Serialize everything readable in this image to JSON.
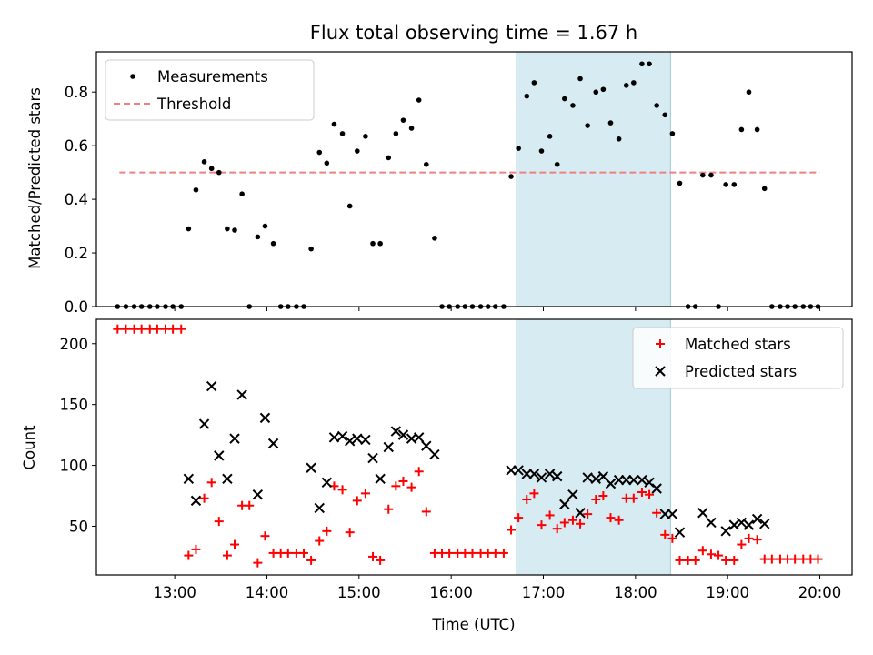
{
  "chart_data": [
    {
      "type": "scatter",
      "title": "Flux total observing time = 1.67 h",
      "xlabel": "",
      "ylabel": "Matched/Predicted stars",
      "xlim": [
        12.15,
        20.35
      ],
      "ylim": [
        0,
        0.95
      ],
      "yticks": [
        0.0,
        0.2,
        0.4,
        0.6,
        0.8
      ],
      "ytick_labels": [
        "0.0",
        "0.2",
        "0.4",
        "0.6",
        "0.8"
      ],
      "highlight_span": [
        16.71,
        18.38
      ],
      "legend_position": "top-left",
      "threshold": {
        "name": "Threshold",
        "value": 0.5,
        "x_range": [
          12.4,
          20.0
        ],
        "color": "#f08080"
      },
      "series": [
        {
          "name": "Measurements",
          "marker": "dot",
          "color": "#000000",
          "points": [
            [
              12.38,
              0
            ],
            [
              12.47,
              0
            ],
            [
              12.56,
              0
            ],
            [
              12.64,
              0
            ],
            [
              12.73,
              0
            ],
            [
              12.81,
              0
            ],
            [
              12.9,
              0
            ],
            [
              12.98,
              0
            ],
            [
              13.07,
              0
            ],
            [
              13.15,
              0.29
            ],
            [
              13.23,
              0.435
            ],
            [
              13.32,
              0.54
            ],
            [
              13.4,
              0.515
            ],
            [
              13.48,
              0.5
            ],
            [
              13.57,
              0.29
            ],
            [
              13.65,
              0.285
            ],
            [
              13.73,
              0.42
            ],
            [
              13.81,
              0
            ],
            [
              13.9,
              0.26
            ],
            [
              13.98,
              0.3
            ],
            [
              14.07,
              0.235
            ],
            [
              14.15,
              0
            ],
            [
              14.23,
              0
            ],
            [
              14.32,
              0
            ],
            [
              14.4,
              0
            ],
            [
              14.48,
              0.215
            ],
            [
              14.57,
              0.575
            ],
            [
              14.65,
              0.535
            ],
            [
              14.73,
              0.68
            ],
            [
              14.82,
              0.645
            ],
            [
              14.9,
              0.375
            ],
            [
              14.98,
              0.58
            ],
            [
              15.07,
              0.635
            ],
            [
              15.15,
              0.235
            ],
            [
              15.23,
              0.235
            ],
            [
              15.32,
              0.555
            ],
            [
              15.4,
              0.645
            ],
            [
              15.48,
              0.695
            ],
            [
              15.57,
              0.665
            ],
            [
              15.65,
              0.77
            ],
            [
              15.73,
              0.53
            ],
            [
              15.82,
              0.255
            ],
            [
              15.9,
              0
            ],
            [
              15.98,
              0
            ],
            [
              16.07,
              0
            ],
            [
              16.15,
              0
            ],
            [
              16.23,
              0
            ],
            [
              16.32,
              0
            ],
            [
              16.4,
              0
            ],
            [
              16.48,
              0
            ],
            [
              16.57,
              0
            ],
            [
              16.65,
              0.485
            ],
            [
              16.73,
              0.59
            ],
            [
              16.82,
              0.785
            ],
            [
              16.9,
              0.835
            ],
            [
              16.98,
              0.58
            ],
            [
              17.07,
              0.635
            ],
            [
              17.15,
              0.53
            ],
            [
              17.23,
              0.775
            ],
            [
              17.32,
              0.75
            ],
            [
              17.4,
              0.85
            ],
            [
              17.48,
              0.675
            ],
            [
              17.57,
              0.8
            ],
            [
              17.65,
              0.81
            ],
            [
              17.73,
              0.685
            ],
            [
              17.82,
              0.625
            ],
            [
              17.9,
              0.825
            ],
            [
              17.98,
              0.835
            ],
            [
              18.07,
              0.905
            ],
            [
              18.15,
              0.905
            ],
            [
              18.23,
              0.75
            ],
            [
              18.32,
              0.715
            ],
            [
              18.4,
              0.645
            ],
            [
              18.48,
              0.46
            ],
            [
              18.57,
              0
            ],
            [
              18.65,
              0
            ],
            [
              18.73,
              0.49
            ],
            [
              18.82,
              0.49
            ],
            [
              18.9,
              0
            ],
            [
              18.98,
              0.455
            ],
            [
              19.07,
              0.455
            ],
            [
              19.15,
              0.66
            ],
            [
              19.23,
              0.8
            ],
            [
              19.32,
              0.66
            ],
            [
              19.4,
              0.44
            ],
            [
              19.48,
              0
            ],
            [
              19.57,
              0
            ],
            [
              19.65,
              0
            ],
            [
              19.73,
              0
            ],
            [
              19.82,
              0
            ],
            [
              19.9,
              0
            ],
            [
              19.98,
              0
            ]
          ]
        }
      ]
    },
    {
      "type": "scatter",
      "title": "",
      "xlabel": "Time (UTC)",
      "ylabel": "Count",
      "xlim": [
        12.15,
        20.35
      ],
      "ylim": [
        10,
        220
      ],
      "yticks": [
        50,
        100,
        150,
        200
      ],
      "ytick_labels": [
        "50",
        "100",
        "150",
        "200"
      ],
      "xticks": [
        13,
        14,
        15,
        16,
        17,
        18,
        19,
        20
      ],
      "xtick_labels": [
        "13:00",
        "14:00",
        "15:00",
        "16:00",
        "17:00",
        "18:00",
        "19:00",
        "20:00"
      ],
      "highlight_span": [
        16.71,
        18.38
      ],
      "legend_position": "top-right",
      "series": [
        {
          "name": "Matched stars",
          "marker": "plus",
          "color": "#ff0000",
          "points": [
            [
              12.38,
              212
            ],
            [
              12.47,
              212
            ],
            [
              12.56,
              212
            ],
            [
              12.64,
              212
            ],
            [
              12.73,
              212
            ],
            [
              12.81,
              212
            ],
            [
              12.9,
              212
            ],
            [
              12.98,
              212
            ],
            [
              13.07,
              212
            ],
            [
              13.15,
              26
            ],
            [
              13.23,
              31
            ],
            [
              13.32,
              73
            ],
            [
              13.4,
              86
            ],
            [
              13.48,
              54
            ],
            [
              13.57,
              26
            ],
            [
              13.65,
              35
            ],
            [
              13.73,
              67
            ],
            [
              13.81,
              67
            ],
            [
              13.9,
              20
            ],
            [
              13.98,
              42
            ],
            [
              14.07,
              28
            ],
            [
              14.15,
              28
            ],
            [
              14.23,
              28
            ],
            [
              14.32,
              28
            ],
            [
              14.4,
              28
            ],
            [
              14.48,
              22
            ],
            [
              14.57,
              38
            ],
            [
              14.65,
              46
            ],
            [
              14.73,
              83
            ],
            [
              14.82,
              80
            ],
            [
              14.9,
              45
            ],
            [
              14.98,
              71
            ],
            [
              15.07,
              77
            ],
            [
              15.15,
              25
            ],
            [
              15.23,
              22
            ],
            [
              15.32,
              64
            ],
            [
              15.4,
              83
            ],
            [
              15.48,
              87
            ],
            [
              15.57,
              82
            ],
            [
              15.65,
              95
            ],
            [
              15.73,
              62
            ],
            [
              15.82,
              28
            ],
            [
              15.9,
              28
            ],
            [
              15.98,
              28
            ],
            [
              16.07,
              28
            ],
            [
              16.15,
              28
            ],
            [
              16.23,
              28
            ],
            [
              16.32,
              28
            ],
            [
              16.4,
              28
            ],
            [
              16.48,
              28
            ],
            [
              16.57,
              28
            ],
            [
              16.65,
              47
            ],
            [
              16.73,
              57
            ],
            [
              16.82,
              72
            ],
            [
              16.9,
              77
            ],
            [
              16.98,
              51
            ],
            [
              17.07,
              59
            ],
            [
              17.15,
              48
            ],
            [
              17.23,
              53
            ],
            [
              17.32,
              55
            ],
            [
              17.4,
              52
            ],
            [
              17.48,
              60
            ],
            [
              17.57,
              72
            ],
            [
              17.65,
              75
            ],
            [
              17.73,
              57
            ],
            [
              17.82,
              55
            ],
            [
              17.9,
              73
            ],
            [
              17.98,
              73
            ],
            [
              18.07,
              78
            ],
            [
              18.15,
              76
            ],
            [
              18.23,
              61
            ],
            [
              18.32,
              43
            ],
            [
              18.4,
              40
            ],
            [
              18.48,
              22
            ],
            [
              18.57,
              22
            ],
            [
              18.65,
              22
            ],
            [
              18.73,
              30
            ],
            [
              18.82,
              27
            ],
            [
              18.9,
              26
            ],
            [
              18.98,
              22
            ],
            [
              19.07,
              22
            ],
            [
              19.15,
              35
            ],
            [
              19.23,
              40
            ],
            [
              19.32,
              39
            ],
            [
              19.4,
              23
            ],
            [
              19.48,
              23
            ],
            [
              19.57,
              23
            ],
            [
              19.65,
              23
            ],
            [
              19.73,
              23
            ],
            [
              19.82,
              23
            ],
            [
              19.9,
              23
            ],
            [
              19.98,
              23
            ]
          ]
        },
        {
          "name": "Predicted stars",
          "marker": "x",
          "color": "#000000",
          "points": [
            [
              13.15,
              89
            ],
            [
              13.23,
              71
            ],
            [
              13.32,
              134
            ],
            [
              13.4,
              165
            ],
            [
              13.48,
              108
            ],
            [
              13.57,
              89
            ],
            [
              13.65,
              122
            ],
            [
              13.73,
              158
            ],
            [
              13.9,
              76
            ],
            [
              13.98,
              139
            ],
            [
              14.07,
              118
            ],
            [
              14.48,
              98
            ],
            [
              14.57,
              65
            ],
            [
              14.65,
              86
            ],
            [
              14.73,
              123
            ],
            [
              14.82,
              124
            ],
            [
              14.9,
              120
            ],
            [
              14.98,
              122
            ],
            [
              15.07,
              121
            ],
            [
              15.15,
              106
            ],
            [
              15.23,
              89
            ],
            [
              15.32,
              115
            ],
            [
              15.4,
              128
            ],
            [
              15.48,
              125
            ],
            [
              15.57,
              122
            ],
            [
              15.65,
              123
            ],
            [
              15.73,
              116
            ],
            [
              15.82,
              109
            ],
            [
              16.65,
              96
            ],
            [
              16.73,
              96
            ],
            [
              16.82,
              93
            ],
            [
              16.9,
              93
            ],
            [
              16.98,
              90
            ],
            [
              17.07,
              93
            ],
            [
              17.15,
              91
            ],
            [
              17.23,
              68
            ],
            [
              17.32,
              76
            ],
            [
              17.4,
              61
            ],
            [
              17.48,
              90
            ],
            [
              17.57,
              89
            ],
            [
              17.65,
              91
            ],
            [
              17.73,
              85
            ],
            [
              17.82,
              88
            ],
            [
              17.9,
              88
            ],
            [
              17.98,
              88
            ],
            [
              18.07,
              88
            ],
            [
              18.15,
              86
            ],
            [
              18.23,
              81
            ],
            [
              18.32,
              60
            ],
            [
              18.4,
              60
            ],
            [
              18.48,
              45
            ],
            [
              18.73,
              61
            ],
            [
              18.82,
              53
            ],
            [
              18.98,
              46
            ],
            [
              19.07,
              51
            ],
            [
              19.15,
              53
            ],
            [
              19.23,
              51
            ],
            [
              19.32,
              56
            ],
            [
              19.4,
              52
            ]
          ]
        }
      ]
    }
  ]
}
